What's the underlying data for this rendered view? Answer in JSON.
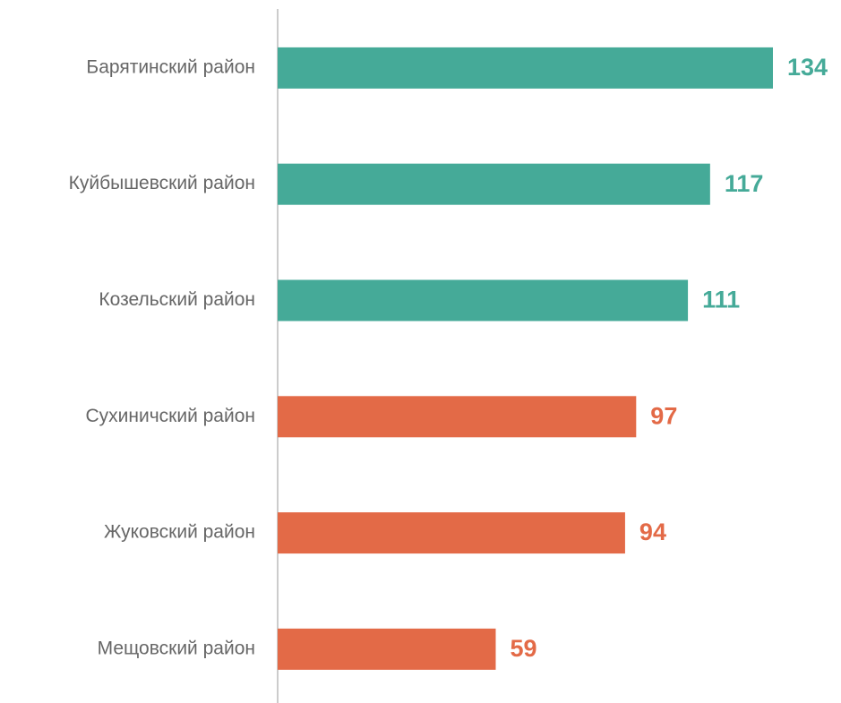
{
  "chart_data": {
    "type": "barh",
    "categories": [
      "Барятинский район",
      "Куйбышевский район",
      "Козельский район",
      "Сухиничский район",
      "Жуковский район",
      "Мещовский район"
    ],
    "values": [
      134,
      117,
      111,
      97,
      94,
      59
    ],
    "colors": [
      "#45aa98",
      "#45aa98",
      "#45aa98",
      "#e36a47",
      "#e36a47",
      "#e36a47"
    ]
  }
}
